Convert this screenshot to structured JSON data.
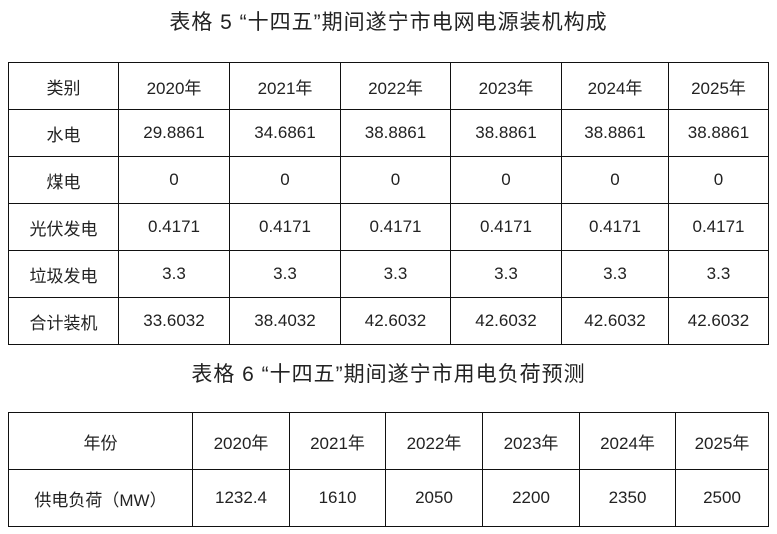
{
  "table5": {
    "title": "表格 5 “十四五”期间遂宁市电网电源装机构成",
    "header": [
      "类别",
      "2020年",
      "2021年",
      "2022年",
      "2023年",
      "2024年",
      "2025年"
    ],
    "rows": [
      [
        "水电",
        "29.8861",
        "34.6861",
        "38.8861",
        "38.8861",
        "38.8861",
        "38.8861"
      ],
      [
        "煤电",
        "0",
        "0",
        "0",
        "0",
        "0",
        "0"
      ],
      [
        "光伏发电",
        "0.4171",
        "0.4171",
        "0.4171",
        "0.4171",
        "0.4171",
        "0.4171"
      ],
      [
        "垃圾发电",
        "3.3",
        "3.3",
        "3.3",
        "3.3",
        "3.3",
        "3.3"
      ],
      [
        "合计装机",
        "33.6032",
        "38.4032",
        "42.6032",
        "42.6032",
        "42.6032",
        "42.6032"
      ]
    ]
  },
  "table6": {
    "title": "表格 6 “十四五”期间遂宁市用电负荷预测",
    "header": [
      "年份",
      "2020年",
      "2021年",
      "2022年",
      "2023年",
      "2024年",
      "2025年"
    ],
    "rows": [
      [
        "供电负荷（MW）",
        "1232.4",
        "1610",
        "2050",
        "2200",
        "2350",
        "2500"
      ]
    ]
  }
}
